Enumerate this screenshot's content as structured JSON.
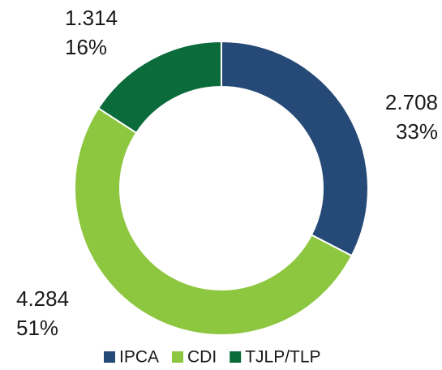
{
  "chart_data": {
    "type": "donut",
    "categories": [
      "IPCA",
      "CDI",
      "TJLP/TLP"
    ],
    "values": [
      2708,
      4284,
      1314
    ],
    "value_labels": [
      "2.708",
      "4.284",
      "1.314"
    ],
    "shares": [
      33,
      51,
      16
    ],
    "share_labels": [
      "33%",
      "51%",
      "16%"
    ],
    "colors": [
      "#264a77",
      "#8dc63f",
      "#0b6b3b"
    ],
    "legend": "bottom"
  }
}
